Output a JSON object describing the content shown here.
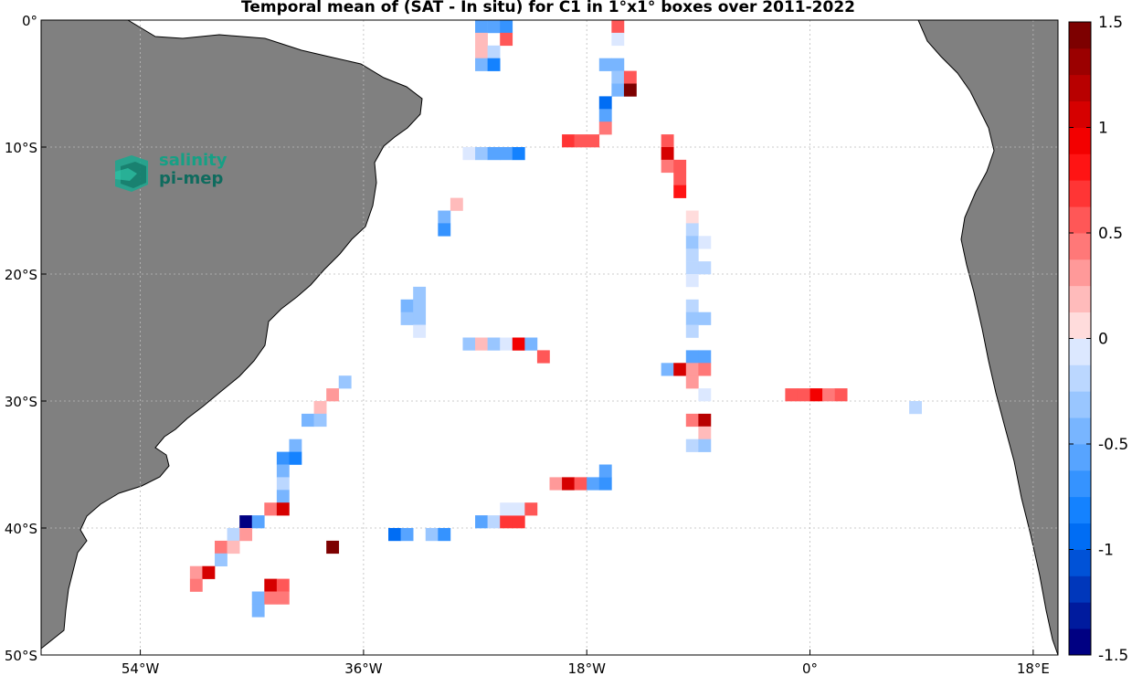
{
  "title": "Temporal mean of (SAT - In situ) for C1 in 1°x1° boxes over 2011-2022",
  "logo": {
    "line1": "salinity",
    "line2": "pi-mep"
  },
  "chart_data": {
    "type": "heatmap",
    "lon_range": [
      -62,
      20
    ],
    "lat_range": [
      -50,
      0
    ],
    "x_ticks": [
      {
        "lon": -54,
        "label": "54°W"
      },
      {
        "lon": -36,
        "label": "36°W"
      },
      {
        "lon": -18,
        "label": "18°W"
      },
      {
        "lon": 0,
        "label": "0°"
      },
      {
        "lon": 18,
        "label": "18°E"
      }
    ],
    "y_ticks": [
      {
        "lat": 0,
        "label": "0°"
      },
      {
        "lat": -10,
        "label": "10°S"
      },
      {
        "lat": -20,
        "label": "20°S"
      },
      {
        "lat": -30,
        "label": "30°S"
      },
      {
        "lat": -40,
        "label": "40°S"
      },
      {
        "lat": -50,
        "label": "50°S"
      }
    ],
    "colorbar": {
      "range": [
        -1.5,
        1.5
      ],
      "step": 0.125,
      "ticks": [
        "1.5",
        "1",
        "0.5",
        "0",
        "-0.5",
        "-1",
        "-1.5"
      ],
      "tick_values": [
        1.5,
        1,
        0.5,
        0,
        -0.5,
        -1,
        -1.5
      ]
    },
    "grid": true,
    "cells": [
      [
        -27,
        -1,
        -0.6
      ],
      [
        -26,
        -1,
        -0.6
      ],
      [
        -25,
        -1,
        -0.7
      ],
      [
        -27,
        -2,
        0.15
      ],
      [
        -25,
        -2,
        0.6
      ],
      [
        -27,
        -3,
        0.2
      ],
      [
        -26,
        -3,
        -0.2
      ],
      [
        -27,
        -4,
        -0.5
      ],
      [
        -26,
        -4,
        -0.8
      ],
      [
        -16,
        -1,
        0.5
      ],
      [
        -16,
        -2,
        -0.1
      ],
      [
        -17,
        -4,
        -0.5
      ],
      [
        -16,
        -4,
        -0.5
      ],
      [
        -16,
        -5,
        -0.3
      ],
      [
        -15,
        -5,
        0.55
      ],
      [
        -16,
        -6,
        -0.4
      ],
      [
        -15,
        -6,
        1.5
      ],
      [
        -17,
        -7,
        -0.9
      ],
      [
        -17,
        -8,
        -0.6
      ],
      [
        -17,
        -9,
        0.4
      ],
      [
        -20,
        -10,
        0.7
      ],
      [
        -19,
        -10,
        0.5
      ],
      [
        -18,
        -10,
        0.5
      ],
      [
        -12,
        -10,
        0.6
      ],
      [
        -12,
        -11,
        1.0
      ],
      [
        -12,
        -12,
        0.4
      ],
      [
        -11,
        -12,
        0.6
      ],
      [
        -11,
        -13,
        0.5
      ],
      [
        -11,
        -14,
        0.8
      ],
      [
        -28,
        -11,
        -0.1
      ],
      [
        -27,
        -11,
        -0.3
      ],
      [
        -26,
        -11,
        -0.6
      ],
      [
        -25,
        -11,
        -0.6
      ],
      [
        -24,
        -11,
        -0.8
      ],
      [
        -29,
        -15,
        0.2
      ],
      [
        -30,
        -16,
        -0.5
      ],
      [
        -30,
        -17,
        -0.7
      ],
      [
        -10,
        -16,
        0.1
      ],
      [
        -10,
        -17,
        -0.25
      ],
      [
        -10,
        -18,
        -0.3
      ],
      [
        -9,
        -18,
        -0.1
      ],
      [
        -10,
        -19,
        -0.15
      ],
      [
        -10,
        -20,
        -0.15
      ],
      [
        -9,
        -20,
        -0.2
      ],
      [
        -10,
        -21,
        -0.1
      ],
      [
        -32,
        -22,
        -0.35
      ],
      [
        -33,
        -23,
        -0.5
      ],
      [
        -32,
        -23,
        -0.35
      ],
      [
        -33,
        -24,
        -0.35
      ],
      [
        -32,
        -24,
        -0.3
      ],
      [
        -32,
        -25,
        -0.1
      ],
      [
        -10,
        -23,
        -0.2
      ],
      [
        -10,
        -24,
        -0.35
      ],
      [
        -9,
        -24,
        -0.35
      ],
      [
        -10,
        -25,
        -0.2
      ],
      [
        -28,
        -26,
        -0.35
      ],
      [
        -27,
        -26,
        0.2
      ],
      [
        -26,
        -26,
        -0.3
      ],
      [
        -25,
        -26,
        -0.1
      ],
      [
        -24,
        -26,
        0.9
      ],
      [
        -23,
        -26,
        -0.4
      ],
      [
        -22,
        -27,
        0.6
      ],
      [
        -10,
        -27,
        -0.6
      ],
      [
        -9,
        -27,
        -0.6
      ],
      [
        -12,
        -28,
        -0.5
      ],
      [
        -11,
        -28,
        1.0
      ],
      [
        -10,
        -28,
        0.35
      ],
      [
        -9,
        -28,
        0.45
      ],
      [
        -10,
        -29,
        0.3
      ],
      [
        -9,
        -30,
        -0.1
      ],
      [
        -2,
        -30,
        0.55
      ],
      [
        -1,
        -30,
        0.55
      ],
      [
        0,
        -30,
        0.9
      ],
      [
        1,
        -30,
        0.4
      ],
      [
        2,
        -30,
        0.5
      ],
      [
        8,
        -31,
        -0.2
      ],
      [
        -10,
        -32,
        0.4
      ],
      [
        -9,
        -32,
        1.2
      ],
      [
        -9,
        -33,
        0.2
      ],
      [
        -10,
        -34,
        -0.2
      ],
      [
        -9,
        -34,
        -0.35
      ],
      [
        -38,
        -29,
        -0.3
      ],
      [
        -39,
        -30,
        0.3
      ],
      [
        -40,
        -31,
        0.15
      ],
      [
        -41,
        -32,
        -0.5
      ],
      [
        -40,
        -32,
        -0.3
      ],
      [
        -42,
        -34,
        -0.5
      ],
      [
        -43,
        -35,
        -0.65
      ],
      [
        -42,
        -35,
        -0.8
      ],
      [
        -43,
        -36,
        -0.5
      ],
      [
        -43,
        -37,
        -0.15
      ],
      [
        -43,
        -38,
        -0.4
      ],
      [
        -44,
        -39,
        0.4
      ],
      [
        -43,
        -39,
        1.1
      ],
      [
        -46,
        -40,
        -1.5
      ],
      [
        -45,
        -40,
        -0.55
      ],
      [
        -47,
        -41,
        -0.15
      ],
      [
        -46,
        -41,
        0.35
      ],
      [
        -48,
        -42,
        0.4
      ],
      [
        -47,
        -42,
        0.2
      ],
      [
        -48,
        -43,
        -0.3
      ],
      [
        -50,
        -44,
        0.3
      ],
      [
        -49,
        -44,
        1.1
      ],
      [
        -50,
        -45,
        0.45
      ],
      [
        -39,
        -42,
        1.4
      ],
      [
        -44,
        -45,
        1.1
      ],
      [
        -43,
        -45,
        0.5
      ],
      [
        -45,
        -46,
        -0.4
      ],
      [
        -44,
        -46,
        0.4
      ],
      [
        -43,
        -46,
        0.4
      ],
      [
        -45,
        -47,
        -0.4
      ],
      [
        -34,
        -41,
        -1.0
      ],
      [
        -33,
        -41,
        -0.6
      ],
      [
        -31,
        -41,
        -0.35
      ],
      [
        -30,
        -41,
        -0.7
      ],
      [
        -27,
        -40,
        -0.55
      ],
      [
        -26,
        -40,
        -0.2
      ],
      [
        -25,
        -40,
        0.7
      ],
      [
        -24,
        -40,
        0.7
      ],
      [
        -25,
        -39,
        -0.1
      ],
      [
        -24,
        -39,
        -0.1
      ],
      [
        -23,
        -39,
        0.5
      ],
      [
        -21,
        -37,
        0.3
      ],
      [
        -20,
        -37,
        1.0
      ],
      [
        -19,
        -37,
        0.5
      ],
      [
        -18,
        -37,
        -0.55
      ],
      [
        -17,
        -37,
        -0.7
      ],
      [
        -17,
        -36,
        -0.6
      ]
    ]
  }
}
